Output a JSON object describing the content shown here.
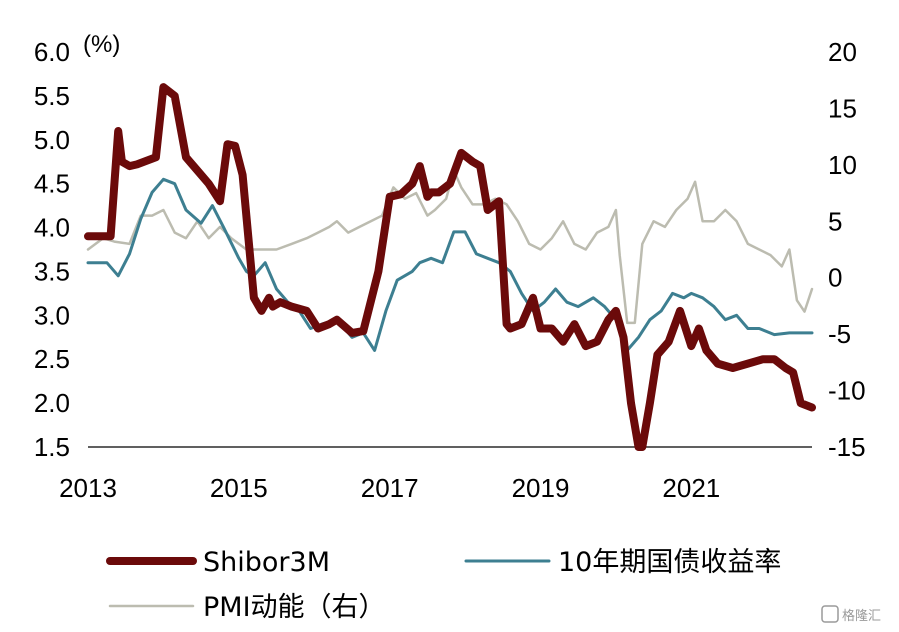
{
  "chart_data": {
    "type": "line",
    "left_unit": "(%)",
    "x_ticks": [
      "2013",
      "2015",
      "2017",
      "2019",
      "2021"
    ],
    "xlim": [
      2013.0,
      2022.6
    ],
    "y_left_ticks": [
      "6.0",
      "5.5",
      "5.0",
      "4.5",
      "4.0",
      "3.5",
      "3.0",
      "2.5",
      "2.0",
      "1.5"
    ],
    "y_right_ticks": [
      "20",
      "15",
      "10",
      "5",
      "0",
      "-5",
      "-10",
      "-15"
    ],
    "ylim_left": [
      1.5,
      6.0
    ],
    "ylim_right": [
      -15,
      20
    ],
    "series": [
      {
        "name": "Shibor3M",
        "axis": "left",
        "color": "#6b0a0a",
        "x": [
          2013.0,
          2013.3,
          2013.4,
          2013.45,
          2013.55,
          2013.65,
          2013.9,
          2014.0,
          2014.15,
          2014.3,
          2014.45,
          2014.6,
          2014.75,
          2014.85,
          2014.95,
          2015.05,
          2015.2,
          2015.3,
          2015.4,
          2015.45,
          2015.55,
          2015.7,
          2015.9,
          2016.05,
          2016.2,
          2016.3,
          2016.5,
          2016.65,
          2016.85,
          2017.0,
          2017.15,
          2017.3,
          2017.4,
          2017.5,
          2017.55,
          2017.65,
          2017.8,
          2017.95,
          2018.1,
          2018.2,
          2018.3,
          2018.45,
          2018.55,
          2018.6,
          2018.75,
          2018.9,
          2019.0,
          2019.15,
          2019.3,
          2019.45,
          2019.6,
          2019.75,
          2019.9,
          2020.0,
          2020.1,
          2020.2,
          2020.3,
          2020.35,
          2020.45,
          2020.55,
          2020.7,
          2020.85,
          2021.0,
          2021.1,
          2021.2,
          2021.35,
          2021.55,
          2021.75,
          2021.95,
          2022.1,
          2022.25,
          2022.35,
          2022.45,
          2022.6
        ],
        "values": [
          3.9,
          3.9,
          5.1,
          4.75,
          4.7,
          4.72,
          4.8,
          5.6,
          5.5,
          4.8,
          4.65,
          4.5,
          4.3,
          4.95,
          4.93,
          4.6,
          3.2,
          3.05,
          3.2,
          3.1,
          3.15,
          3.1,
          3.05,
          2.85,
          2.9,
          2.95,
          2.8,
          2.82,
          3.5,
          4.35,
          4.38,
          4.5,
          4.7,
          4.35,
          4.4,
          4.4,
          4.5,
          4.85,
          4.75,
          4.7,
          4.2,
          4.3,
          2.9,
          2.85,
          2.9,
          3.2,
          2.85,
          2.85,
          2.7,
          2.9,
          2.65,
          2.7,
          2.95,
          3.05,
          2.75,
          2.0,
          1.5,
          1.5,
          2.0,
          2.55,
          2.7,
          3.05,
          2.65,
          2.85,
          2.6,
          2.45,
          2.4,
          2.45,
          2.5,
          2.5,
          2.4,
          2.35,
          2.0,
          1.95
        ]
      },
      {
        "name": "10年期国债收益率",
        "axis": "left",
        "color": "#3d7f91",
        "x": [
          2013.0,
          2013.25,
          2013.4,
          2013.55,
          2013.7,
          2013.85,
          2014.0,
          2014.15,
          2014.3,
          2014.5,
          2014.65,
          2014.8,
          2015.0,
          2015.1,
          2015.2,
          2015.35,
          2015.5,
          2015.65,
          2015.8,
          2015.95,
          2016.1,
          2016.3,
          2016.5,
          2016.65,
          2016.8,
          2016.95,
          2017.1,
          2017.3,
          2017.4,
          2017.55,
          2017.7,
          2017.85,
          2018.0,
          2018.15,
          2018.3,
          2018.45,
          2018.6,
          2018.75,
          2018.9,
          2019.05,
          2019.2,
          2019.35,
          2019.5,
          2019.7,
          2019.85,
          2020.0,
          2020.15,
          2020.3,
          2020.45,
          2020.6,
          2020.75,
          2020.9,
          2021.0,
          2021.15,
          2021.3,
          2021.45,
          2021.6,
          2021.75,
          2021.9,
          2022.1,
          2022.3,
          2022.45,
          2022.6
        ],
        "values": [
          3.6,
          3.6,
          3.45,
          3.7,
          4.1,
          4.4,
          4.55,
          4.5,
          4.2,
          4.05,
          4.25,
          4.0,
          3.65,
          3.5,
          3.45,
          3.6,
          3.3,
          3.15,
          3.05,
          2.85,
          2.9,
          2.95,
          2.75,
          2.8,
          2.6,
          3.05,
          3.4,
          3.5,
          3.6,
          3.65,
          3.6,
          3.95,
          3.95,
          3.7,
          3.65,
          3.6,
          3.5,
          3.25,
          3.05,
          3.15,
          3.3,
          3.15,
          3.1,
          3.2,
          3.1,
          2.95,
          2.6,
          2.75,
          2.95,
          3.05,
          3.25,
          3.2,
          3.25,
          3.2,
          3.1,
          2.95,
          3.0,
          2.85,
          2.85,
          2.78,
          2.8,
          2.8,
          2.8
        ]
      },
      {
        "name": "PMI动能（右）",
        "axis": "right",
        "color": "#bcbcb0",
        "x": [
          2013.0,
          2013.2,
          2013.35,
          2013.55,
          2013.7,
          2013.85,
          2014.0,
          2014.15,
          2014.3,
          2014.45,
          2014.6,
          2014.75,
          2014.9,
          2015.1,
          2015.3,
          2015.5,
          2015.7,
          2015.9,
          2016.05,
          2016.2,
          2016.3,
          2016.45,
          2016.6,
          2016.75,
          2016.9,
          2017.05,
          2017.2,
          2017.35,
          2017.5,
          2017.6,
          2017.75,
          2017.85,
          2017.95,
          2018.1,
          2018.25,
          2018.4,
          2018.55,
          2018.7,
          2018.85,
          2019.0,
          2019.15,
          2019.3,
          2019.45,
          2019.6,
          2019.75,
          2019.9,
          2020.0,
          2020.05,
          2020.15,
          2020.25,
          2020.35,
          2020.5,
          2020.65,
          2020.8,
          2020.95,
          2021.05,
          2021.15,
          2021.3,
          2021.45,
          2021.6,
          2021.75,
          2021.9,
          2022.05,
          2022.2,
          2022.3,
          2022.4,
          2022.5,
          2022.6
        ],
        "values": [
          2.5,
          3.5,
          3.2,
          3.0,
          5.5,
          5.5,
          6.0,
          4.0,
          3.5,
          5.0,
          3.5,
          4.5,
          3.5,
          2.5,
          2.5,
          2.5,
          3.0,
          3.5,
          4.0,
          4.5,
          5.0,
          4.0,
          4.5,
          5.0,
          5.5,
          8.0,
          7.0,
          7.5,
          5.5,
          6.0,
          7.0,
          9.5,
          8.0,
          6.5,
          6.5,
          7.0,
          6.5,
          5.0,
          3.0,
          2.5,
          3.5,
          5.0,
          3.0,
          2.5,
          4.0,
          4.5,
          6.0,
          2.0,
          -4.0,
          -4.0,
          3.0,
          5.0,
          4.5,
          6.0,
          7.0,
          8.5,
          5.0,
          5.0,
          6.0,
          5.0,
          3.0,
          2.5,
          2.0,
          1.0,
          2.5,
          -2.0,
          -3.0,
          -1.0
        ]
      }
    ],
    "legend_placement": "bottom",
    "grid": false
  },
  "watermark": "格隆汇"
}
